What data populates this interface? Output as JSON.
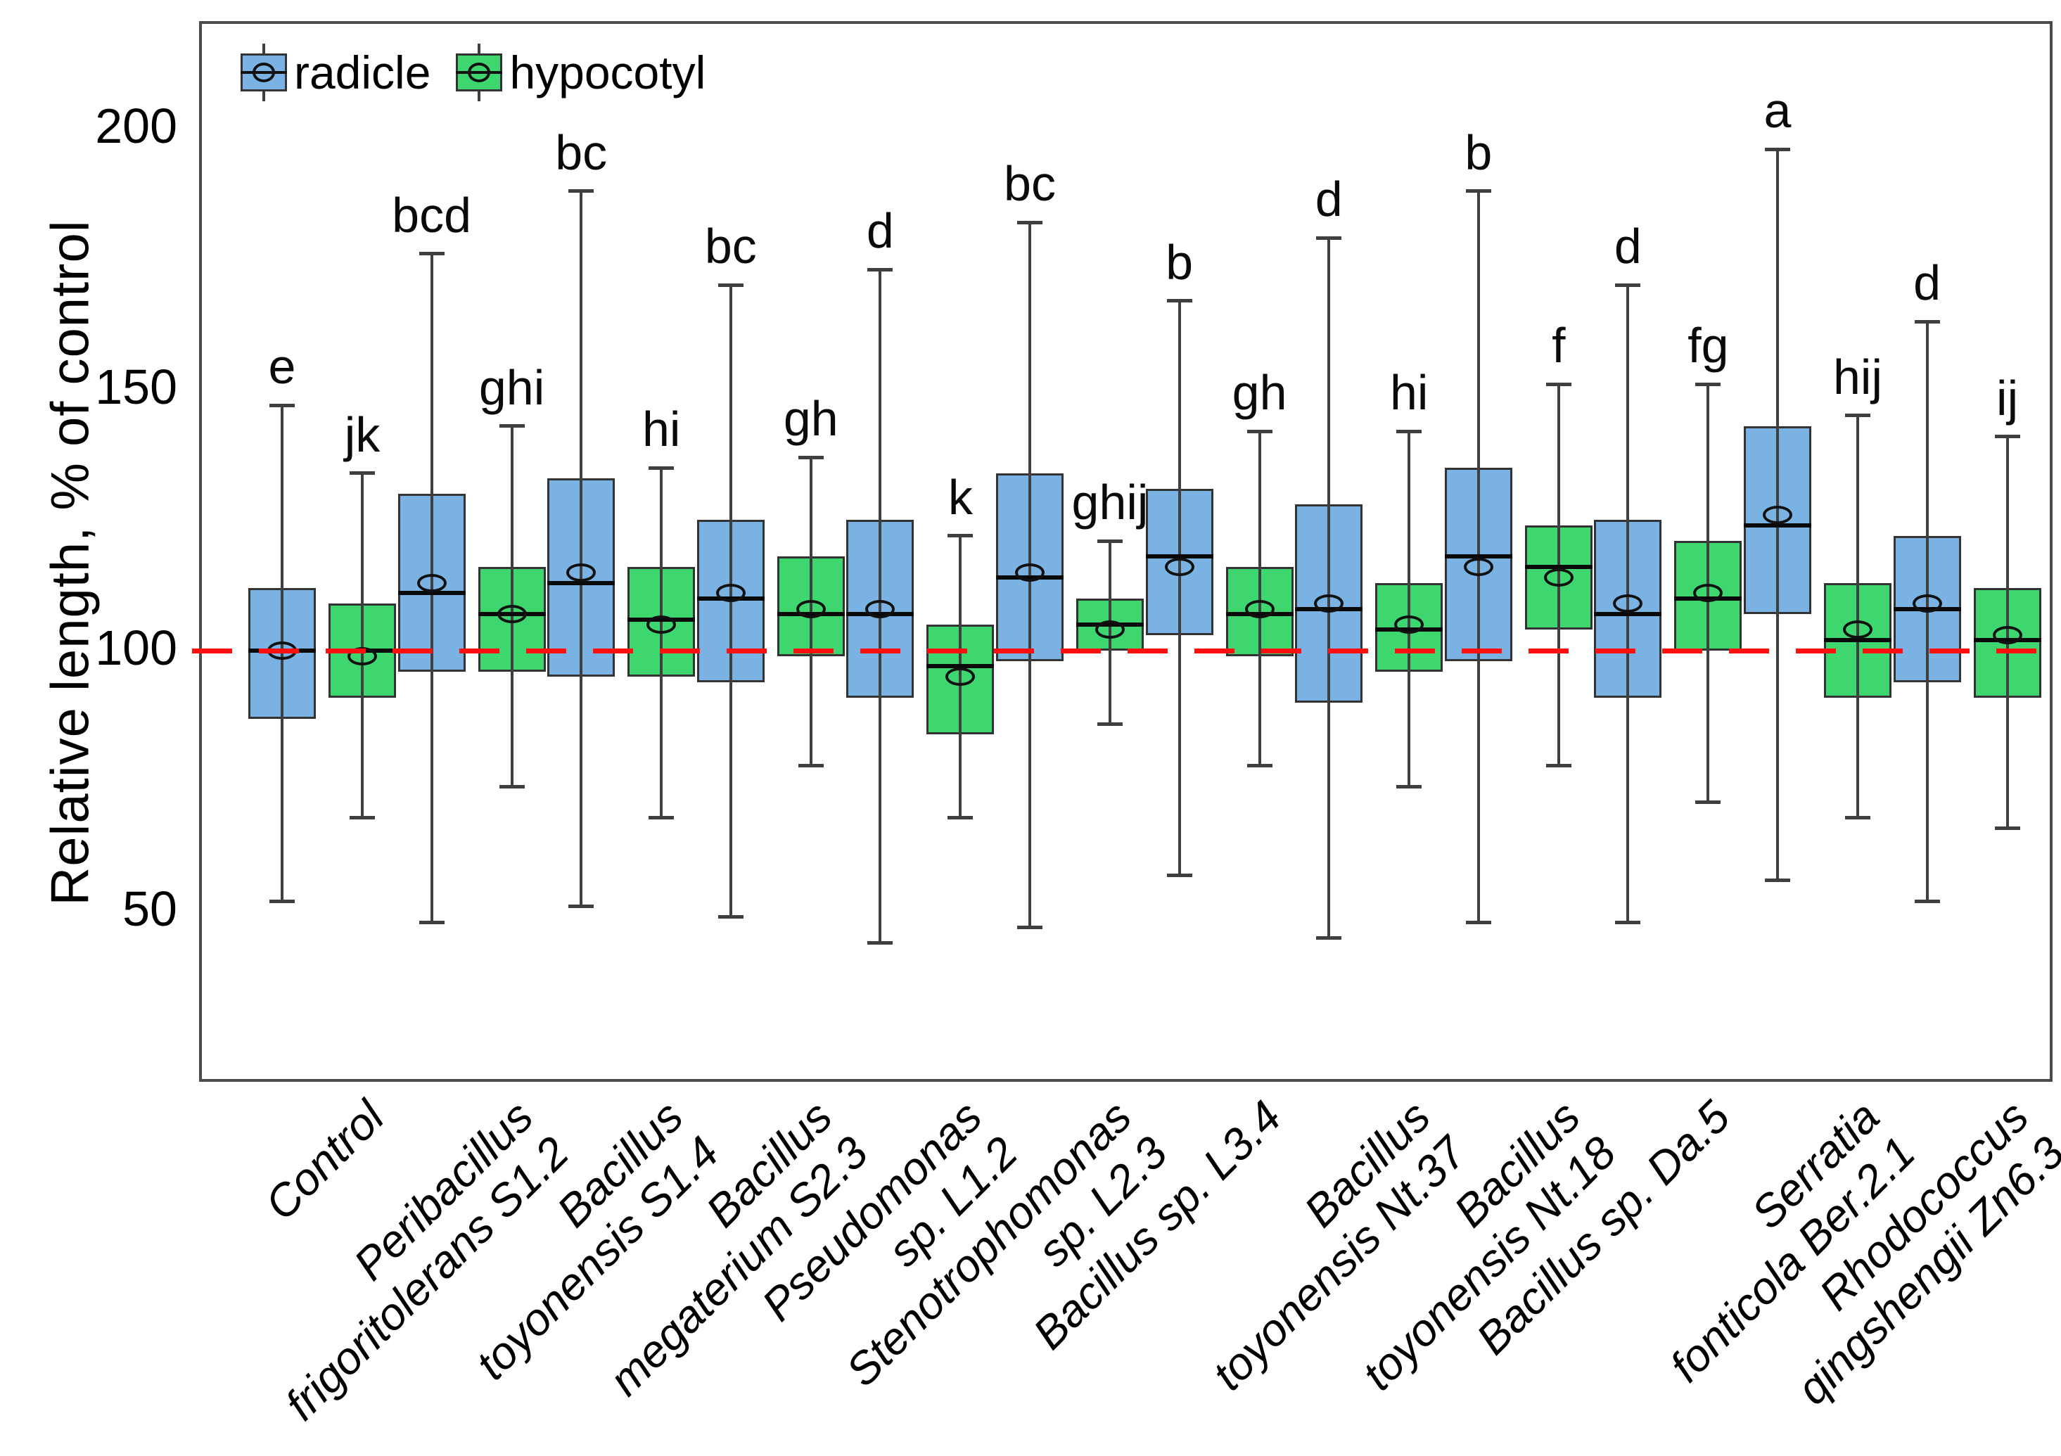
{
  "chart_data": {
    "type": "boxplot",
    "title": "",
    "xlabel": "",
    "ylabel": "Relative length, % of control",
    "ylim": [
      18,
      220
    ],
    "yticks": [
      200,
      150,
      100,
      50
    ],
    "grid": false,
    "legend_position": "top-left-inside",
    "reference_line": {
      "value": 100,
      "color": "#ff1010",
      "style": "dashed"
    },
    "series_names": [
      "radicle",
      "hypocotyl"
    ],
    "colors": {
      "radicle_fill": "#7ab3e3",
      "hypocotyl_fill": "#3ed66e",
      "box_border": "#333333",
      "whisker": "#3f3f3f",
      "median": "#0a0a0a",
      "reference": "#ff1010"
    },
    "legend": [
      {
        "name": "radicle",
        "color": "#7ab3e3"
      },
      {
        "name": "hypocotyl",
        "color": "#3ed66e"
      }
    ],
    "box_stats_order": [
      "whisker_low",
      "q1",
      "median",
      "mean",
      "q3",
      "whisker_high"
    ],
    "categories": [
      {
        "label": "Control",
        "label_lines": [
          "Control"
        ],
        "radicle": {
          "whisker_low": 52,
          "q1": 87,
          "median": 100,
          "mean": 100,
          "q3": 112,
          "whisker_high": 147,
          "letter": "e"
        },
        "hypocotyl": {
          "whisker_low": 68,
          "q1": 91,
          "median": 100,
          "mean": 99,
          "q3": 109,
          "whisker_high": 134,
          "letter": "jk"
        }
      },
      {
        "label": "Peribacillus frigoritolerans S1.2",
        "label_lines": [
          "Peribacillus",
          "frigoritolerans S1.2"
        ],
        "radicle": {
          "whisker_low": 48,
          "q1": 96,
          "median": 111,
          "mean": 113,
          "q3": 130,
          "whisker_high": 176,
          "letter": "bcd"
        },
        "hypocotyl": {
          "whisker_low": 74,
          "q1": 96,
          "median": 107,
          "mean": 107,
          "q3": 116,
          "whisker_high": 143,
          "letter": "ghi"
        }
      },
      {
        "label": "Bacillus toyonensis S1.4",
        "label_lines": [
          "Bacillus",
          "toyonensis S1.4"
        ],
        "radicle": {
          "whisker_low": 51,
          "q1": 95,
          "median": 113,
          "mean": 115,
          "q3": 133,
          "whisker_high": 188,
          "letter": "bc"
        },
        "hypocotyl": {
          "whisker_low": 68,
          "q1": 95,
          "median": 106,
          "mean": 105,
          "q3": 116,
          "whisker_high": 135,
          "letter": "hi"
        }
      },
      {
        "label": "Bacillus megaterium S2.3",
        "label_lines": [
          "Bacillus",
          "megaterium S2.3"
        ],
        "radicle": {
          "whisker_low": 49,
          "q1": 94,
          "median": 110,
          "mean": 111,
          "q3": 125,
          "whisker_high": 170,
          "letter": "bc"
        },
        "hypocotyl": {
          "whisker_low": 78,
          "q1": 99,
          "median": 107,
          "mean": 108,
          "q3": 118,
          "whisker_high": 137,
          "letter": "gh"
        }
      },
      {
        "label": "Pseudomonas sp. L1.2",
        "label_lines": [
          "Pseudomonas",
          "sp. L1.2"
        ],
        "radicle": {
          "whisker_low": 44,
          "q1": 91,
          "median": 107,
          "mean": 108,
          "q3": 125,
          "whisker_high": 173,
          "letter": "d"
        },
        "hypocotyl": {
          "whisker_low": 68,
          "q1": 84,
          "median": 97,
          "mean": 95,
          "q3": 105,
          "whisker_high": 122,
          "letter": "k"
        }
      },
      {
        "label": "Stenotrophomonas sp. L2.3",
        "label_lines": [
          "Stenotrophomonas",
          "sp.  L2.3"
        ],
        "radicle": {
          "whisker_low": 47,
          "q1": 98,
          "median": 114,
          "mean": 115,
          "q3": 134,
          "whisker_high": 182,
          "letter": "bc"
        },
        "hypocotyl": {
          "whisker_low": 86,
          "q1": 100,
          "median": 105,
          "mean": 104,
          "q3": 110,
          "whisker_high": 121,
          "letter": "ghij"
        }
      },
      {
        "label": "Bacillus sp. L3.4",
        "label_lines": [
          "Bacillus sp. L3.4"
        ],
        "radicle": {
          "whisker_low": 57,
          "q1": 103,
          "median": 118,
          "mean": 116,
          "q3": 131,
          "whisker_high": 167,
          "letter": "b"
        },
        "hypocotyl": {
          "whisker_low": 78,
          "q1": 99,
          "median": 107,
          "mean": 108,
          "q3": 116,
          "whisker_high": 142,
          "letter": "gh"
        }
      },
      {
        "label": "Bacillus toyonensis Nt.37",
        "label_lines": [
          "Bacillus",
          "toyonensis Nt.37"
        ],
        "radicle": {
          "whisker_low": 45,
          "q1": 90,
          "median": 108,
          "mean": 109,
          "q3": 128,
          "whisker_high": 179,
          "letter": "d"
        },
        "hypocotyl": {
          "whisker_low": 74,
          "q1": 96,
          "median": 104,
          "mean": 105,
          "q3": 113,
          "whisker_high": 142,
          "letter": "hi"
        }
      },
      {
        "label": "Bacillus toyonensis Nt.18",
        "label_lines": [
          "Bacillus",
          "toyonensis Nt.18"
        ],
        "radicle": {
          "whisker_low": 48,
          "q1": 98,
          "median": 118,
          "mean": 116,
          "q3": 135,
          "whisker_high": 188,
          "letter": "b"
        },
        "hypocotyl": {
          "whisker_low": 78,
          "q1": 104,
          "median": 116,
          "mean": 114,
          "q3": 124,
          "whisker_high": 151,
          "letter": "f"
        }
      },
      {
        "label": "Bacillus sp. Da.5",
        "label_lines": [
          "Bacillus sp. Da.5"
        ],
        "radicle": {
          "whisker_low": 48,
          "q1": 91,
          "median": 107,
          "mean": 109,
          "q3": 125,
          "whisker_high": 170,
          "letter": "d"
        },
        "hypocotyl": {
          "whisker_low": 71,
          "q1": 100,
          "median": 110,
          "mean": 111,
          "q3": 121,
          "whisker_high": 151,
          "letter": "fg"
        }
      },
      {
        "label": "Serratia fonticola Ber.2.1",
        "label_lines": [
          "Serratia",
          "fonticola Ber.2.1"
        ],
        "radicle": {
          "whisker_low": 56,
          "q1": 107,
          "median": 124,
          "mean": 126,
          "q3": 143,
          "whisker_high": 196,
          "letter": "a"
        },
        "hypocotyl": {
          "whisker_low": 68,
          "q1": 91,
          "median": 102,
          "mean": 104,
          "q3": 113,
          "whisker_high": 145,
          "letter": "hij"
        }
      },
      {
        "label": "Rhodococcus qingshengii Zn6.3",
        "label_lines": [
          "Rhodococcus",
          "qingshengii Zn6.3"
        ],
        "radicle": {
          "whisker_low": 52,
          "q1": 94,
          "median": 108,
          "mean": 109,
          "q3": 122,
          "whisker_high": 163,
          "letter": "d"
        },
        "hypocotyl": {
          "whisker_low": 66,
          "q1": 91,
          "median": 102,
          "mean": 103,
          "q3": 112,
          "whisker_high": 141,
          "letter": "ij"
        }
      }
    ]
  }
}
